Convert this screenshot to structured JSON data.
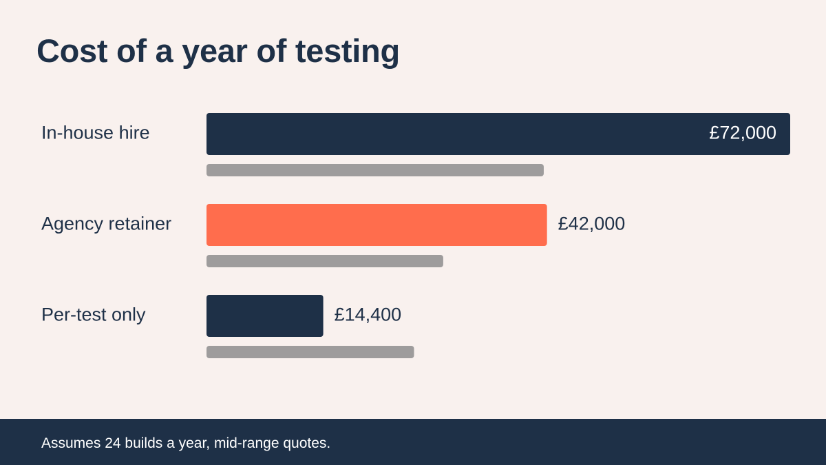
{
  "title": "Cost of a year of testing",
  "footer": {
    "note": "Assumes 24 builds a year, mid-range quotes."
  },
  "colors": {
    "background": "#f9f1ee",
    "navy": "#1e3047",
    "coral": "#ff6d4d",
    "grey": "#9e9c9c",
    "white": "#ffffff"
  },
  "chart_data": {
    "type": "bar",
    "orientation": "horizontal",
    "xlim": [
      0,
      72000
    ],
    "categories": [
      "In-house hire",
      "Agency retainer",
      "Per-test only"
    ],
    "series": [
      {
        "values": [
          72000,
          42000,
          14400
        ],
        "value_labels": [
          "£72,000",
          "£42,000",
          "£14,400"
        ],
        "colors": [
          "#1e3047",
          "#ff6d4d",
          "#1e3047"
        ]
      },
      {
        "values": [
          41600,
          29200,
          25600
        ],
        "colors": [
          "#9e9c9c",
          "#9e9c9c",
          "#9e9c9c"
        ]
      }
    ],
    "legend": "none",
    "grid": false
  }
}
